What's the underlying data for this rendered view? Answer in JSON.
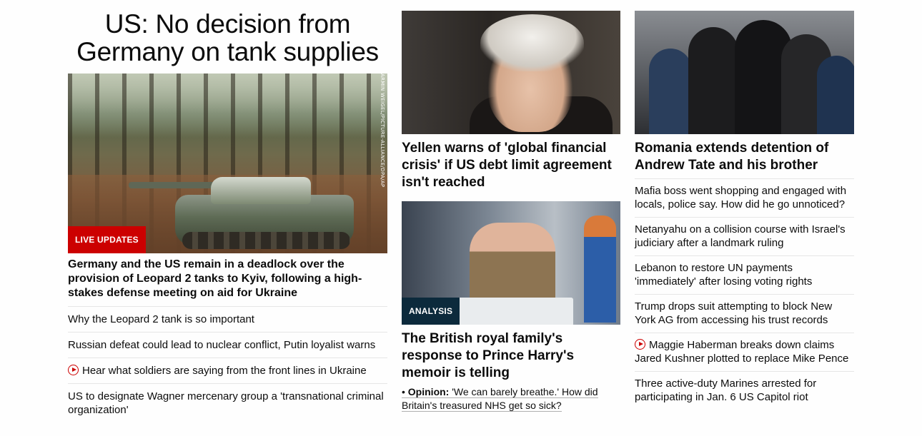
{
  "lead": {
    "headline": "US: No decision from Germany on tank supplies",
    "image_credit": "ARMIN WEIGEL/PICTURE-ALLIANCE/DPA/AP",
    "badge": "LIVE UPDATES",
    "summary": "Germany and the US remain in a deadlock over the provision of Leopard 2 tanks to Kyiv, following a high-stakes defense meeting on aid for Ukraine",
    "related": [
      {
        "text": "Why the Leopard 2 tank is so important",
        "video": false
      },
      {
        "text": "Russian defeat could lead to nuclear conflict, Putin loyalist warns",
        "video": false
      },
      {
        "text": "Hear what soldiers are saying from the front lines in Ukraine",
        "video": true
      },
      {
        "text": "US to designate Wagner mercenary group a 'transnational criminal organization'",
        "video": false
      }
    ]
  },
  "middle": {
    "story1": {
      "title": "Yellen warns of 'global financial crisis' if US debt limit agreement isn't reached"
    },
    "story2": {
      "badge": "ANALYSIS",
      "title": "The British royal family's response to Prince Harry's memoir is telling",
      "opinion_label": "Opinion:",
      "opinion_text": "'We can barely breathe.' How did Britain's treasured NHS get so sick?"
    }
  },
  "right": {
    "title": "Romania extends detention of Andrew Tate and his brother",
    "items": [
      {
        "text": "Mafia boss went shopping and engaged with locals, police say. How did he go unnoticed?",
        "video": false
      },
      {
        "text": "Netanyahu on a collision course with Israel's judiciary after a landmark ruling",
        "video": false
      },
      {
        "text": "Lebanon to restore UN payments 'immediately' after losing voting rights",
        "video": false
      },
      {
        "text": "Trump drops suit attempting to block New York AG from accessing his trust records",
        "video": false
      },
      {
        "text": "Maggie Haberman breaks down claims Jared Kushner plotted to replace Mike Pence",
        "video": true
      },
      {
        "text": "Three active-duty Marines arrested for participating in Jan. 6 US Capitol riot",
        "video": false
      }
    ]
  },
  "colors": {
    "accent_red": "#cc0000",
    "analysis_badge": "#0c2a3c",
    "divider": "#e6e6e6"
  },
  "icons": {
    "video": "play-circle-icon"
  }
}
